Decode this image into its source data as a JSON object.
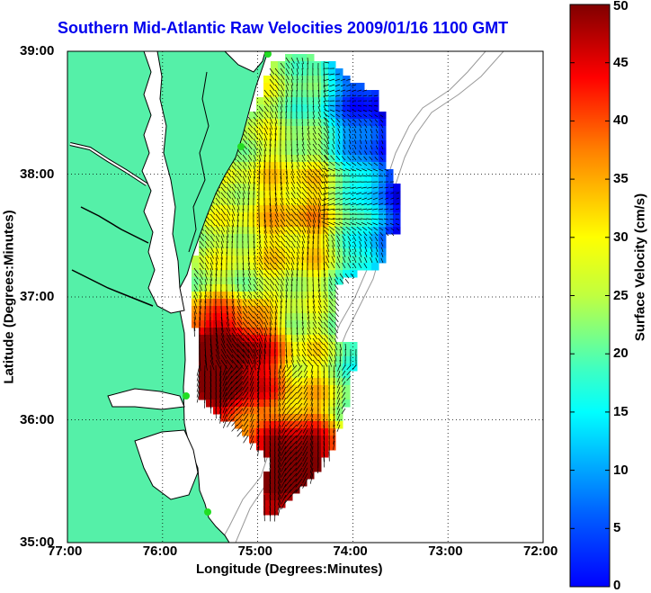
{
  "title": "Southern Mid-Atlantic Raw Velocities 2009/01/16 1100 GMT",
  "x_axis": {
    "label": "Longitude (Degrees:Minutes)",
    "ticks": [
      "77:00",
      "76:00",
      "75:00",
      "74:00",
      "73:00",
      "72:00"
    ],
    "range": [
      -77,
      -72
    ]
  },
  "y_axis": {
    "label": "Latitude (Degrees:Minutes)",
    "ticks": [
      "39:00",
      "38:00",
      "37:00",
      "36:00",
      "35:00"
    ],
    "range": [
      35,
      39
    ]
  },
  "colorbar": {
    "label": "Surface Velocity (cm/s)",
    "ticks": [
      "50",
      "45",
      "40",
      "35",
      "30",
      "25",
      "20",
      "15",
      "10",
      "5",
      "0"
    ],
    "range": [
      0,
      50
    ],
    "colormap": "jet"
  },
  "grid": true,
  "colors": {
    "land": "#55f0a8",
    "title": "#0000ee",
    "coastline": "#000000",
    "bathymetry": "#999999",
    "station": "#22dd22",
    "arrow": "#000000"
  }
}
